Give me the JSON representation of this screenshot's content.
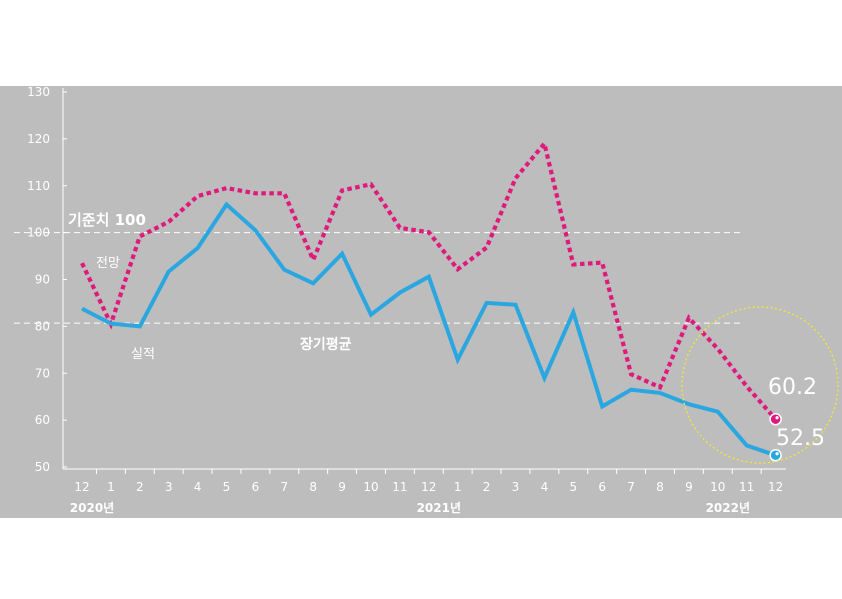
{
  "colors": {
    "background": "#bdbdbd",
    "forecast": "#e0197d",
    "actual": "#2aa7e0",
    "reference": "#ffffff",
    "highlight_circle": "#f2ea2e",
    "axis_text": "#ffffff"
  },
  "chart_data": {
    "type": "line",
    "x_tick_labels": [
      "12",
      "1",
      "2",
      "3",
      "4",
      "5",
      "6",
      "7",
      "8",
      "9",
      "10",
      "11",
      "12",
      "1",
      "2",
      "3",
      "4",
      "5",
      "6",
      "7",
      "8",
      "9",
      "10",
      "11",
      "12"
    ],
    "year_labels": [
      "2020년",
      "2021년",
      "2022년"
    ],
    "y_ticks": [
      50,
      60,
      70,
      80,
      90,
      100,
      110,
      120,
      130
    ],
    "ylim": [
      50,
      130
    ],
    "grid": false,
    "series": [
      {
        "name": "전망",
        "style": "dotted",
        "values": [
          93.5,
          80.5,
          99.2,
          102.3,
          107.8,
          109.5,
          108.4,
          108.4,
          94.2,
          109.0,
          110.3,
          101.0,
          100.1,
          92.2,
          96.8,
          111.6,
          119.0,
          93.2,
          93.6,
          69.8,
          67.0,
          81.8,
          75.2,
          67.2,
          60.2
        ]
      },
      {
        "name": "실적",
        "style": "solid",
        "values": [
          83.8,
          80.6,
          80.0,
          91.7,
          96.7,
          106.0,
          100.5,
          92.1,
          89.2,
          95.5,
          82.5,
          87.2,
          90.6,
          72.9,
          85.0,
          84.6,
          69.0,
          83.0,
          62.9,
          66.5,
          65.8,
          63.4,
          61.8,
          54.6,
          52.5
        ]
      }
    ],
    "reference_lines": [
      {
        "label": "기준치 100",
        "value": 100
      },
      {
        "label": "장기평균",
        "value": 80.7
      }
    ],
    "end_labels": {
      "forecast": "60.2",
      "actual": "52.5"
    }
  }
}
